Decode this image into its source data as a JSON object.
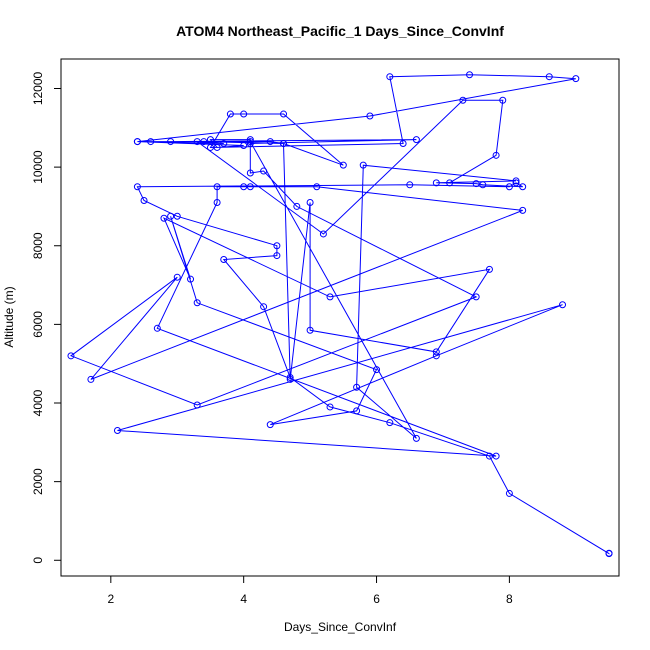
{
  "chart_data": {
    "type": "line",
    "title": "ATOM4 Northeast_Pacific_1 Days_Since_ConvInf",
    "xlabel": "Days_Since_ConvInf",
    "ylabel": "Altitude (m)",
    "xlim": [
      1.25,
      9.65
    ],
    "ylim": [
      -400,
      12750
    ],
    "x_ticks": [
      2,
      4,
      6,
      8
    ],
    "y_ticks": [
      0,
      2000,
      4000,
      6000,
      8000,
      10000,
      12000
    ],
    "x_tick_labels": [
      "2",
      "4",
      "6",
      "8"
    ],
    "y_tick_labels": [
      "0",
      "2000",
      "4000",
      "6000",
      "8000",
      "10000",
      "12000"
    ],
    "grid": false,
    "color": "#0000ff",
    "series": [
      {
        "values": [
          [
            9.5,
            180
          ],
          [
            9.5,
            170
          ],
          [
            8.0,
            1700
          ],
          [
            7.7,
            2650
          ],
          [
            6.2,
            3500
          ],
          [
            5.3,
            3900
          ],
          [
            4.7,
            4650
          ],
          [
            4.3,
            6450
          ],
          [
            3.7,
            7650
          ],
          [
            4.5,
            7750
          ],
          [
            4.5,
            8000
          ],
          [
            3.0,
            8750
          ],
          [
            2.5,
            9150
          ],
          [
            2.4,
            9500
          ],
          [
            6.5,
            9550
          ],
          [
            8.0,
            9500
          ],
          [
            8.1,
            9600
          ],
          [
            8.2,
            9500
          ],
          [
            7.6,
            9550
          ],
          [
            7.5,
            9580
          ],
          [
            6.9,
            9600
          ],
          [
            8.1,
            9650
          ],
          [
            5.8,
            10050
          ],
          [
            5.7,
            4400
          ],
          [
            6.6,
            3100
          ],
          [
            4.1,
            10650
          ],
          [
            4.1,
            10700
          ],
          [
            3.5,
            10700
          ],
          [
            3.6,
            10500
          ],
          [
            4.0,
            10550
          ],
          [
            2.4,
            10650
          ],
          [
            2.6,
            10650
          ],
          [
            4.4,
            10650
          ],
          [
            4.6,
            10600
          ],
          [
            4.7,
            4600
          ],
          [
            5.0,
            9100
          ],
          [
            5.0,
            5850
          ],
          [
            6.9,
            5300
          ],
          [
            7.7,
            7400
          ],
          [
            5.3,
            6700
          ],
          [
            2.8,
            8700
          ],
          [
            3.2,
            7150
          ],
          [
            2.9,
            8750
          ],
          [
            3.3,
            6550
          ],
          [
            6.0,
            4850
          ],
          [
            5.7,
            3800
          ],
          [
            4.4,
            3450
          ],
          [
            6.9,
            5200
          ],
          [
            8.8,
            6500
          ],
          [
            2.1,
            3300
          ],
          [
            7.8,
            2650
          ],
          [
            2.7,
            5900
          ],
          [
            3.6,
            9100
          ],
          [
            3.6,
            9500
          ],
          [
            4.0,
            9500
          ],
          [
            4.1,
            9500
          ],
          [
            5.1,
            9500
          ],
          [
            8.2,
            8900
          ],
          [
            1.7,
            4600
          ],
          [
            3.0,
            7200
          ],
          [
            1.4,
            5200
          ],
          [
            3.3,
            3950
          ],
          [
            7.5,
            6700
          ],
          [
            4.8,
            9000
          ],
          [
            4.3,
            9900
          ],
          [
            4.1,
            9850
          ],
          [
            4.1,
            10600
          ],
          [
            6.6,
            10700
          ],
          [
            2.9,
            10650
          ],
          [
            3.4,
            10650
          ],
          [
            4.6,
            10600
          ],
          [
            5.5,
            10050
          ],
          [
            4.6,
            11350
          ],
          [
            4.0,
            11350
          ],
          [
            3.8,
            11350
          ],
          [
            3.5,
            10500
          ],
          [
            6.4,
            10600
          ],
          [
            6.2,
            12300
          ],
          [
            7.4,
            12350
          ],
          [
            8.6,
            12300
          ],
          [
            9.0,
            12250
          ],
          [
            5.9,
            11300
          ],
          [
            2.4,
            10650
          ],
          [
            3.7,
            10600
          ],
          [
            3.3,
            10650
          ],
          [
            5.2,
            8300
          ],
          [
            7.3,
            11700
          ],
          [
            7.9,
            11700
          ],
          [
            7.8,
            10300
          ],
          [
            7.1,
            9600
          ]
        ]
      }
    ]
  }
}
